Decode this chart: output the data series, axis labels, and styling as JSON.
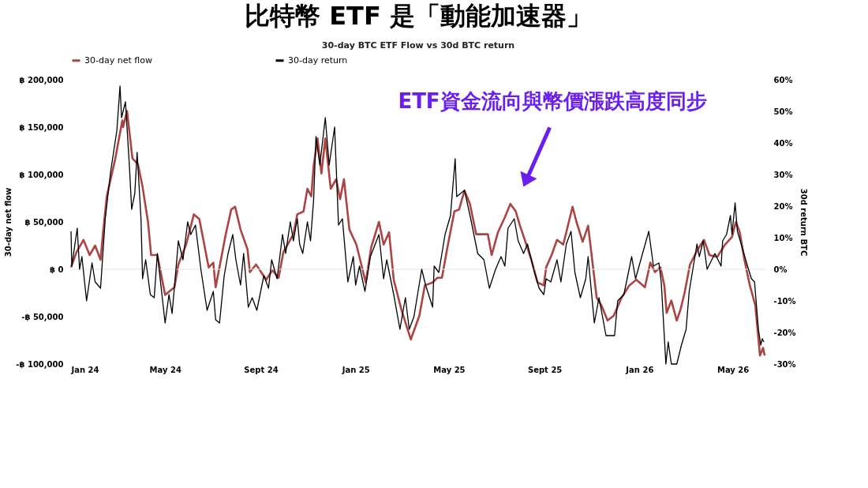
{
  "chart_data": {
    "type": "line",
    "title": "比特幣 ETF 是「動能加速器」",
    "subtitle": "30-day BTC ETF Flow vs 30d BTC return",
    "ylabel": "30-day net flow",
    "y2label": "30d return BTC",
    "annotations": [
      "ETF資金流向與幣價漲跌高度同步"
    ],
    "xlim": [
      "2024-01-01",
      "2026-06-12"
    ],
    "xticks": [
      {
        "value": "2024-01-01",
        "label": "Jan 24"
      },
      {
        "value": "2024-05-01",
        "label": "May 24"
      },
      {
        "value": "2024-09-01",
        "label": "Sept 24"
      },
      {
        "value": "2025-01-01",
        "label": "Jan 25"
      },
      {
        "value": "2025-05-01",
        "label": "May 25"
      },
      {
        "value": "2025-09-01",
        "label": "Sept 25"
      },
      {
        "value": "2026-01-01",
        "label": "Jan 26"
      },
      {
        "value": "2026-05-01",
        "label": "May 26"
      }
    ],
    "ylim": [
      -100000,
      200000
    ],
    "yticks": [
      {
        "value": -100000,
        "label": "-฿ 100,000"
      },
      {
        "value": -50000,
        "label": "-฿ 50,000"
      },
      {
        "value": 0,
        "label": "฿ 0"
      },
      {
        "value": 50000,
        "label": "฿ 50,000"
      },
      {
        "value": 100000,
        "label": "฿ 100,000"
      },
      {
        "value": 150000,
        "label": "฿ 150,000"
      },
      {
        "value": 200000,
        "label": "฿ 200,000"
      }
    ],
    "y2lim": [
      -30,
      60
    ],
    "y2ticks": [
      {
        "value": -30,
        "label": "-30%"
      },
      {
        "value": -20,
        "label": "-20%"
      },
      {
        "value": -10,
        "label": "-10%"
      },
      {
        "value": 0,
        "label": "0%"
      },
      {
        "value": 10,
        "label": "10%"
      },
      {
        "value": 20,
        "label": "20%"
      },
      {
        "value": 30,
        "label": "30%"
      },
      {
        "value": 40,
        "label": "40%"
      },
      {
        "value": 50,
        "label": "50%"
      },
      {
        "value": 60,
        "label": "60%"
      }
    ],
    "ref_lines": [
      {
        "axis": "y",
        "value": 0,
        "color": "#e6e6e6"
      }
    ],
    "grid": false,
    "legend": "top",
    "marker": "none",
    "line_style": "solid",
    "series": [
      {
        "name": "30-day net flow",
        "color": "#ad4444",
        "x": [
          "2024-01-01",
          "2024-01-08",
          "2024-01-17",
          "2024-01-25",
          "2024-02-01",
          "2024-02-08",
          "2024-02-11",
          "2024-02-16",
          "2024-02-27",
          "2024-03-07",
          "2024-03-08",
          "2024-03-13",
          "2024-03-20",
          "2024-03-27",
          "2024-04-02",
          "2024-04-09",
          "2024-04-13",
          "2024-04-21",
          "2024-04-26",
          "2024-05-01",
          "2024-05-13",
          "2024-05-18",
          "2024-05-28",
          "2024-06-07",
          "2024-06-14",
          "2024-06-26",
          "2024-07-02",
          "2024-07-05",
          "2024-07-18",
          "2024-07-25",
          "2024-07-30",
          "2024-08-06",
          "2024-08-15",
          "2024-08-18",
          "2024-08-26",
          "2024-09-08",
          "2024-09-16",
          "2024-09-24",
          "2024-09-30",
          "2024-10-13",
          "2024-10-18",
          "2024-10-26",
          "2024-10-31",
          "2024-11-05",
          "2024-11-08",
          "2024-11-13",
          "2024-11-18",
          "2024-11-23",
          "2024-11-30",
          "2024-12-07",
          "2024-12-12",
          "2024-12-17",
          "2024-12-24",
          "2025-01-02",
          "2025-01-14",
          "2025-01-21",
          "2025-01-31",
          "2025-02-06",
          "2025-02-13",
          "2025-02-19",
          "2025-03-01",
          "2025-03-13",
          "2025-03-24",
          "2025-03-31",
          "2025-04-10",
          "2025-04-16",
          "2025-04-22",
          "2025-04-29",
          "2025-05-08",
          "2025-05-14",
          "2025-05-21",
          "2025-05-28",
          "2025-06-05",
          "2025-06-13",
          "2025-06-20",
          "2025-06-25",
          "2025-07-03",
          "2025-07-12",
          "2025-07-19",
          "2025-07-26",
          "2025-07-31",
          "2025-08-09",
          "2025-08-15",
          "2025-08-23",
          "2025-08-31",
          "2025-09-03",
          "2025-09-10",
          "2025-09-17",
          "2025-09-25",
          "2025-10-07",
          "2025-10-12",
          "2025-10-20",
          "2025-10-27",
          "2025-11-07",
          "2025-11-13",
          "2025-11-21",
          "2025-11-29",
          "2025-12-09",
          "2025-12-19",
          "2025-12-28",
          "2026-01-08",
          "2026-01-15",
          "2026-01-21",
          "2026-01-28",
          "2026-02-02",
          "2026-02-05",
          "2026-02-11",
          "2026-02-18",
          "2026-02-23",
          "2026-02-28",
          "2026-03-07",
          "2026-03-17",
          "2026-03-25",
          "2026-04-01",
          "2026-04-11",
          "2026-04-21",
          "2026-04-30",
          "2026-05-05",
          "2026-05-10",
          "2026-05-16",
          "2026-05-23",
          "2026-05-30",
          "2026-06-05",
          "2026-06-09",
          "2026-06-11"
        ],
        "values": [
          2000,
          18000,
          31000,
          15000,
          25000,
          10000,
          37000,
          77000,
          117000,
          157000,
          150000,
          167000,
          117000,
          111000,
          87000,
          50000,
          15000,
          15000,
          -6000,
          -27000,
          -19000,
          5000,
          26000,
          58000,
          53000,
          2000,
          7000,
          -19000,
          37000,
          63000,
          66000,
          42000,
          21000,
          -3000,
          5000,
          -11000,
          -1000,
          -9000,
          18000,
          37000,
          58000,
          61000,
          85000,
          77000,
          109000,
          138000,
          101000,
          138000,
          85000,
          95000,
          74000,
          95000,
          42000,
          26000,
          -14000,
          23000,
          50000,
          26000,
          39000,
          -11000,
          -43000,
          -74000,
          -49000,
          -17000,
          -14000,
          -9000,
          -9000,
          23000,
          61000,
          63000,
          83000,
          69000,
          37000,
          37000,
          37000,
          15000,
          39000,
          55000,
          69000,
          61000,
          47000,
          25000,
          10000,
          -14000,
          -17000,
          2000,
          15000,
          31000,
          26000,
          66000,
          50000,
          29000,
          46000,
          -30000,
          -38000,
          -54000,
          -49000,
          -30000,
          -17000,
          -11000,
          -19000,
          7000,
          -3000,
          2000,
          -17000,
          -46000,
          -33000,
          -54000,
          -42000,
          -25000,
          5000,
          21000,
          31000,
          15000,
          13000,
          26000,
          34000,
          50000,
          39000,
          10000,
          -17000,
          -38000,
          -91000,
          -83000,
          -91000
        ]
      },
      {
        "name": "30-day return",
        "color": "#000000",
        "axis": "y2",
        "x": [
          "2024-01-01",
          "2024-01-02",
          "2024-01-09",
          "2024-01-12",
          "2024-01-15",
          "2024-01-21",
          "2024-01-28",
          "2024-02-01",
          "2024-02-08",
          "2024-02-14",
          "2024-02-21",
          "2024-02-29",
          "2024-03-04",
          "2024-03-06",
          "2024-03-11",
          "2024-03-16",
          "2024-03-19",
          "2024-03-23",
          "2024-03-26",
          "2024-03-31",
          "2024-04-02",
          "2024-04-06",
          "2024-04-12",
          "2024-04-17",
          "2024-04-21",
          "2024-05-01",
          "2024-05-06",
          "2024-05-10",
          "2024-05-16",
          "2024-05-18",
          "2024-05-24",
          "2024-05-30",
          "2024-06-03",
          "2024-06-09",
          "2024-06-16",
          "2024-06-24",
          "2024-07-02",
          "2024-07-05",
          "2024-07-10",
          "2024-07-16",
          "2024-07-21",
          "2024-07-27",
          "2024-07-31",
          "2024-08-06",
          "2024-08-10",
          "2024-08-16",
          "2024-08-21",
          "2024-08-27",
          "2024-09-05",
          "2024-09-11",
          "2024-09-15",
          "2024-09-22",
          "2024-09-29",
          "2024-10-03",
          "2024-10-09",
          "2024-10-13",
          "2024-10-18",
          "2024-10-21",
          "2024-10-25",
          "2024-10-31",
          "2024-11-04",
          "2024-11-08",
          "2024-11-11",
          "2024-11-16",
          "2024-11-23",
          "2024-11-28",
          "2024-12-05",
          "2024-12-10",
          "2024-12-15",
          "2024-12-22",
          "2024-12-29",
          "2025-01-01",
          "2025-01-06",
          "2025-01-13",
          "2025-01-20",
          "2025-01-31",
          "2025-02-06",
          "2025-02-10",
          "2025-02-19",
          "2025-02-27",
          "2025-03-06",
          "2025-03-11",
          "2025-03-17",
          "2025-03-27",
          "2025-04-01",
          "2025-04-10",
          "2025-04-12",
          "2025-04-18",
          "2025-04-26",
          "2025-05-03",
          "2025-05-09",
          "2025-05-11",
          "2025-05-21",
          "2025-05-29",
          "2025-06-07",
          "2025-06-15",
          "2025-06-22",
          "2025-06-30",
          "2025-07-07",
          "2025-07-12",
          "2025-07-16",
          "2025-07-24",
          "2025-07-29",
          "2025-08-05",
          "2025-08-10",
          "2025-08-18",
          "2025-08-25",
          "2025-08-31",
          "2025-09-03",
          "2025-09-09",
          "2025-09-17",
          "2025-09-22",
          "2025-09-29",
          "2025-10-05",
          "2025-10-10",
          "2025-10-17",
          "2025-10-24",
          "2025-10-27",
          "2025-11-04",
          "2025-11-10",
          "2025-11-19",
          "2025-11-30",
          "2025-12-04",
          "2025-12-12",
          "2025-12-22",
          "2025-12-27",
          "2026-01-05",
          "2026-01-13",
          "2026-01-19",
          "2026-01-26",
          "2026-01-29",
          "2026-02-04",
          "2026-02-07",
          "2026-02-11",
          "2026-02-18",
          "2026-02-24",
          "2026-03-02",
          "2026-03-06",
          "2026-03-16",
          "2026-03-19",
          "2026-03-24",
          "2026-03-29",
          "2026-04-08",
          "2026-04-16",
          "2026-04-18",
          "2026-04-23",
          "2026-04-28",
          "2026-04-30",
          "2026-05-04",
          "2026-05-07",
          "2026-05-13",
          "2026-05-20",
          "2026-05-25",
          "2026-05-29",
          "2026-06-03",
          "2026-06-06",
          "2026-06-08",
          "2026-06-10"
        ],
        "values": [
          12,
          1,
          13,
          0,
          4,
          -10,
          2,
          -4,
          -6,
          16,
          31,
          44,
          58,
          48,
          53,
          33,
          19,
          24,
          37,
          16,
          -3,
          3,
          -8,
          -9,
          5,
          -17,
          -8,
          -14,
          3,
          9,
          3,
          15,
          11,
          14,
          0,
          -13,
          -7,
          -16,
          -17,
          -2,
          5,
          11,
          3,
          -5,
          5,
          -12,
          -9,
          -13,
          -2,
          -6,
          3,
          -3,
          11,
          5,
          15,
          9,
          16,
          8,
          5,
          15,
          9,
          22,
          42,
          33,
          48,
          33,
          45,
          14,
          16,
          -4,
          4,
          -5,
          1,
          -7,
          4,
          11,
          -3,
          3,
          -8,
          -19,
          -9,
          -19,
          -15,
          0,
          -5,
          -12,
          1,
          -1,
          11,
          17,
          35,
          23,
          25,
          16,
          5,
          3,
          -6,
          0,
          4,
          1,
          13,
          16,
          9,
          5,
          8,
          0,
          -6,
          -8,
          -3,
          -4,
          3,
          -4,
          8,
          12,
          -1,
          -9,
          -3,
          4,
          -17,
          -9,
          -21,
          -21,
          -10,
          -8,
          4,
          -3,
          5,
          12,
          1,
          2,
          -4,
          -30,
          -23,
          -30,
          -30,
          -24,
          -19,
          -7,
          8,
          4,
          9,
          0,
          5,
          1,
          9,
          11,
          17,
          11,
          21,
          12,
          7,
          1,
          -3,
          -4,
          -19,
          -24,
          -22,
          -23
        ]
      }
    ]
  }
}
